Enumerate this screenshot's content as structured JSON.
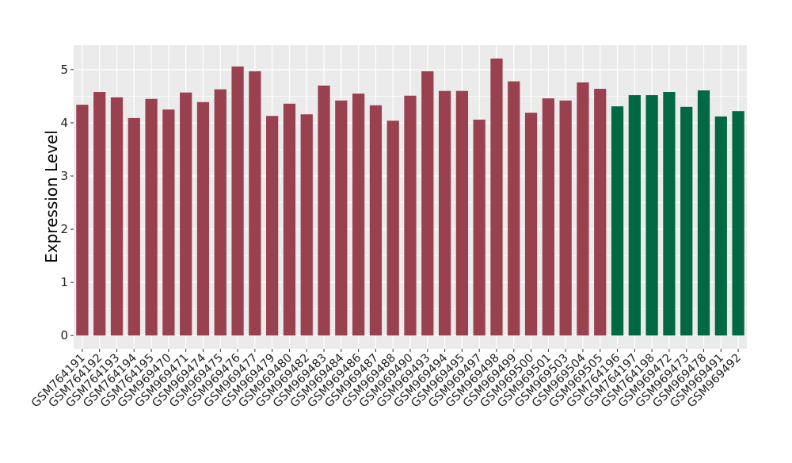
{
  "chart_data": {
    "type": "bar",
    "title": "",
    "xlabel": "",
    "ylabel": "Expression Level",
    "ylim": [
      -0.25,
      5.46
    ],
    "yticks": [
      0,
      1,
      2,
      3,
      4,
      5
    ],
    "grid": true,
    "legend": "none",
    "colors": {
      "group1": "#9a4150",
      "group2": "#006843",
      "panel": "#ebebeb",
      "grid": "#ffffff"
    },
    "categories": [
      "GSM764191",
      "GSM764192",
      "GSM764193",
      "GSM764194",
      "GSM764195",
      "GSM969470",
      "GSM969471",
      "GSM969474",
      "GSM969475",
      "GSM969476",
      "GSM969477",
      "GSM969479",
      "GSM969480",
      "GSM969482",
      "GSM969483",
      "GSM969484",
      "GSM969486",
      "GSM969487",
      "GSM969488",
      "GSM969490",
      "GSM969493",
      "GSM969494",
      "GSM969495",
      "GSM969497",
      "GSM969498",
      "GSM969499",
      "GSM969500",
      "GSM969501",
      "GSM969503",
      "GSM969504",
      "GSM969505",
      "GSM764196",
      "GSM764197",
      "GSM764198",
      "GSM969472",
      "GSM969473",
      "GSM969478",
      "GSM969491",
      "GSM969492"
    ],
    "values": [
      4.34,
      4.58,
      4.48,
      4.09,
      4.45,
      4.25,
      4.57,
      4.39,
      4.63,
      5.06,
      4.97,
      4.13,
      4.36,
      4.16,
      4.7,
      4.42,
      4.55,
      4.33,
      4.04,
      4.51,
      4.97,
      4.6,
      4.6,
      4.06,
      5.21,
      4.78,
      4.19,
      4.46,
      4.42,
      4.76,
      4.64,
      4.31,
      4.52,
      4.52,
      4.58,
      4.3,
      4.61,
      4.12,
      4.22
    ],
    "groups": [
      1,
      1,
      1,
      1,
      1,
      1,
      1,
      1,
      1,
      1,
      1,
      1,
      1,
      1,
      1,
      1,
      1,
      1,
      1,
      1,
      1,
      1,
      1,
      1,
      1,
      1,
      1,
      1,
      1,
      1,
      1,
      2,
      2,
      2,
      2,
      2,
      2,
      2,
      2
    ]
  }
}
